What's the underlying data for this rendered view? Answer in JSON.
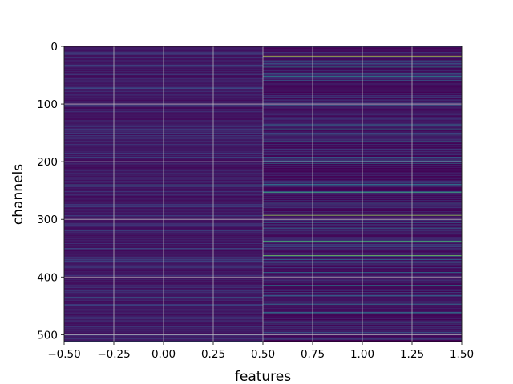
{
  "chart_data": {
    "type": "heatmap",
    "title": "",
    "xlabel": "features",
    "ylabel": "channels",
    "xlim": [
      -0.5,
      1.5
    ],
    "ylim": [
      512,
      0
    ],
    "y_inverted": true,
    "columns": 2,
    "rows": 512,
    "colormap": "viridis",
    "grid": true,
    "x_ticks": [
      "−0.50",
      "−0.25",
      "0.00",
      "0.25",
      "0.50",
      "0.75",
      "1.00",
      "1.25",
      "1.50"
    ],
    "x_tick_values": [
      -0.5,
      -0.25,
      0.0,
      0.25,
      0.5,
      0.75,
      1.0,
      1.25,
      1.5
    ],
    "y_ticks": [
      "0",
      "100",
      "200",
      "300",
      "400",
      "500"
    ],
    "y_tick_values": [
      0,
      100,
      200,
      300,
      400,
      500
    ],
    "colors": {
      "background_low": "#440154",
      "grid": "#c8c8c8"
    },
    "highlights": [
      {
        "column": 1,
        "channel": 17,
        "value": 0.92
      },
      {
        "column": 1,
        "channel": 293,
        "value": 0.85
      },
      {
        "column": 1,
        "channel": 363,
        "value": 0.78
      },
      {
        "column": 1,
        "channel": 338,
        "value": 0.66
      },
      {
        "column": 1,
        "channel": 253,
        "value": 0.62
      },
      {
        "column": 1,
        "channel": 36,
        "value": 0.5
      },
      {
        "column": 1,
        "channel": 52,
        "value": 0.45
      },
      {
        "column": 1,
        "channel": 62,
        "value": 0.42
      },
      {
        "column": 1,
        "channel": 143,
        "value": 0.42
      },
      {
        "column": 1,
        "channel": 165,
        "value": 0.4
      },
      {
        "column": 1,
        "channel": 200,
        "value": 0.48
      },
      {
        "column": 1,
        "channel": 203,
        "value": 0.4
      },
      {
        "column": 1,
        "channel": 240,
        "value": 0.38
      },
      {
        "column": 1,
        "channel": 315,
        "value": 0.36
      },
      {
        "column": 1,
        "channel": 392,
        "value": 0.4
      },
      {
        "column": 1,
        "channel": 414,
        "value": 0.44
      },
      {
        "column": 1,
        "channel": 447,
        "value": 0.38
      },
      {
        "column": 1,
        "channel": 462,
        "value": 0.48
      },
      {
        "column": 1,
        "channel": 480,
        "value": 0.36
      },
      {
        "column": 1,
        "channel": 492,
        "value": 0.4
      },
      {
        "column": 0,
        "channel": 97,
        "value": 0.3
      },
      {
        "column": 0,
        "channel": 160,
        "value": 0.2
      },
      {
        "column": 0,
        "channel": 240,
        "value": 0.36
      },
      {
        "column": 0,
        "channel": 372,
        "value": 0.26
      },
      {
        "column": 0,
        "channel": 435,
        "value": 0.3
      },
      {
        "column": 0,
        "channel": 478,
        "value": 0.28
      }
    ]
  }
}
